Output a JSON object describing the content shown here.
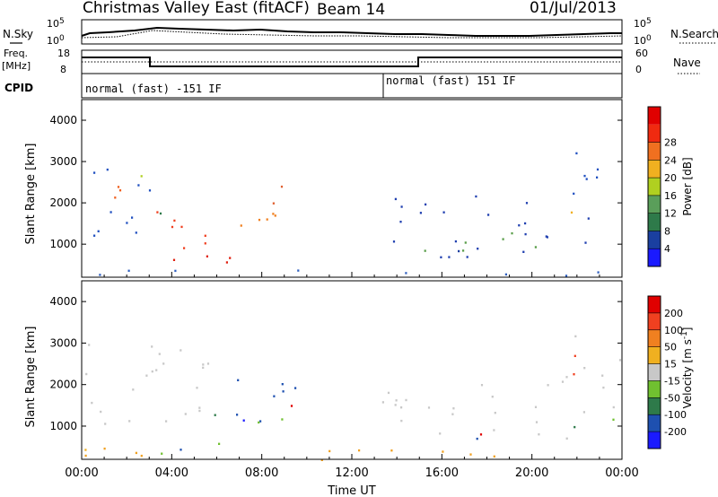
{
  "header": {
    "title": "Christmas Valley East (fitACF)",
    "beam": "Beam 14",
    "date": "01/Jul/2013"
  },
  "top_panels": {
    "nsky_label": "N.Sky",
    "nsky_scale": [
      "10^5",
      "10^0"
    ],
    "nsearch_label": "N.Search",
    "nsearch_scale": [
      "10^5",
      "10^0"
    ],
    "freq_label": "Freq.",
    "freq_unit": "[MHz]",
    "freq_ticks": [
      "18",
      "8"
    ],
    "nave_label": "Nave",
    "nave_ticks": [
      "60",
      "0"
    ],
    "cpid_label": "CPID",
    "cpid_segments": [
      {
        "start_hour": 0,
        "end_hour": 13.3,
        "label": "normal (fast) -151 IF"
      },
      {
        "start_hour": 13.3,
        "end_hour": 24,
        "label": "normal (fast) 151 IF"
      }
    ]
  },
  "chart_data": [
    {
      "type": "heatmap",
      "name": "power-panel",
      "ylabel": "Slant Range [km]",
      "y_ticks": [
        1000,
        2000,
        3000,
        4000
      ],
      "ylim": [
        200,
        4500
      ],
      "xlim": [
        0,
        24
      ],
      "colorbar": {
        "label": "Power [dB]",
        "ticks": [
          "4",
          "8",
          "12",
          "16",
          "20",
          "24",
          "28"
        ],
        "colors": [
          "#1a1aff",
          "#1a3fa0",
          "#2e7a4a",
          "#5a9e5a",
          "#b0d020",
          "#f0b020",
          "#f07020",
          "#f02a10",
          "#e00000"
        ]
      },
      "scatter_regions": [
        {
          "start": 0.0,
          "end": 3.0,
          "r_lo": 900,
          "r_hi": 3000,
          "color": "#2050c0"
        },
        {
          "start": 0.5,
          "end": 3.0,
          "r_lo": 1800,
          "r_hi": 2500,
          "color": "#f06020"
        },
        {
          "start": 3.0,
          "end": 6.5,
          "r_lo": 900,
          "r_hi": 2200,
          "color": "#f04020"
        },
        {
          "start": 4.0,
          "end": 7.0,
          "r_lo": 200,
          "r_hi": 1000,
          "color": "#e02010"
        },
        {
          "start": 7.0,
          "end": 10.0,
          "r_lo": 900,
          "r_hi": 1800,
          "color": "#f08020"
        },
        {
          "start": 7.5,
          "end": 9.5,
          "r_lo": 1900,
          "r_hi": 2500,
          "color": "#e06030"
        },
        {
          "start": 13.0,
          "end": 22.5,
          "r_lo": 700,
          "r_hi": 2300,
          "color": "#2040b0"
        },
        {
          "start": 15.0,
          "end": 22.0,
          "r_lo": 800,
          "r_hi": 1300,
          "color": "#5a9e4a"
        },
        {
          "start": 21.0,
          "end": 24.0,
          "r_lo": 2200,
          "r_hi": 3300,
          "color": "#2050c0"
        },
        {
          "start": 0.0,
          "end": 24.0,
          "r_lo": 200,
          "r_hi": 400,
          "color": "#3060c0"
        }
      ]
    },
    {
      "type": "heatmap",
      "name": "velocity-panel",
      "ylabel": "Slant Range [km]",
      "y_ticks": [
        1000,
        2000,
        3000,
        4000
      ],
      "ylim": [
        200,
        4500
      ],
      "xlim": [
        0,
        24
      ],
      "xlabel": "Time UT",
      "x_ticks": [
        "00:00",
        "04:00",
        "08:00",
        "12:00",
        "16:00",
        "20:00",
        "00:00"
      ],
      "colorbar": {
        "label": "Velocity [m s^-1]",
        "ticks": [
          "200",
          "100",
          "50",
          "15",
          "-15",
          "-50",
          "-100",
          "-200"
        ],
        "colors": [
          "#1a1aff",
          "#1e50b0",
          "#2e7a4a",
          "#70c030",
          "#c8c8c8",
          "#f0b020",
          "#f08020",
          "#f04020",
          "#e00000"
        ]
      },
      "scatter_regions": [
        {
          "start": 0.0,
          "end": 6.5,
          "r_lo": 900,
          "r_hi": 3000,
          "color": "#c8c8c8"
        },
        {
          "start": 3.5,
          "end": 6.5,
          "r_lo": 300,
          "r_hi": 900,
          "color": "#70c030"
        },
        {
          "start": 6.5,
          "end": 9.5,
          "r_lo": 1100,
          "r_hi": 2400,
          "color": "#1e50b0"
        },
        {
          "start": 8.8,
          "end": 10.0,
          "r_lo": 1200,
          "r_hi": 1900,
          "color": "#1a1aff"
        },
        {
          "start": 6.5,
          "end": 9.5,
          "r_lo": 800,
          "r_hi": 1300,
          "color": "#70c030"
        },
        {
          "start": 13.0,
          "end": 24.0,
          "r_lo": 700,
          "r_hi": 2300,
          "color": "#c8c8c8"
        },
        {
          "start": 21.0,
          "end": 24.0,
          "r_lo": 2200,
          "r_hi": 3300,
          "color": "#c8c8c8"
        },
        {
          "start": 0.0,
          "end": 24.0,
          "r_lo": 200,
          "r_hi": 500,
          "color": "#f0a020"
        }
      ]
    }
  ]
}
